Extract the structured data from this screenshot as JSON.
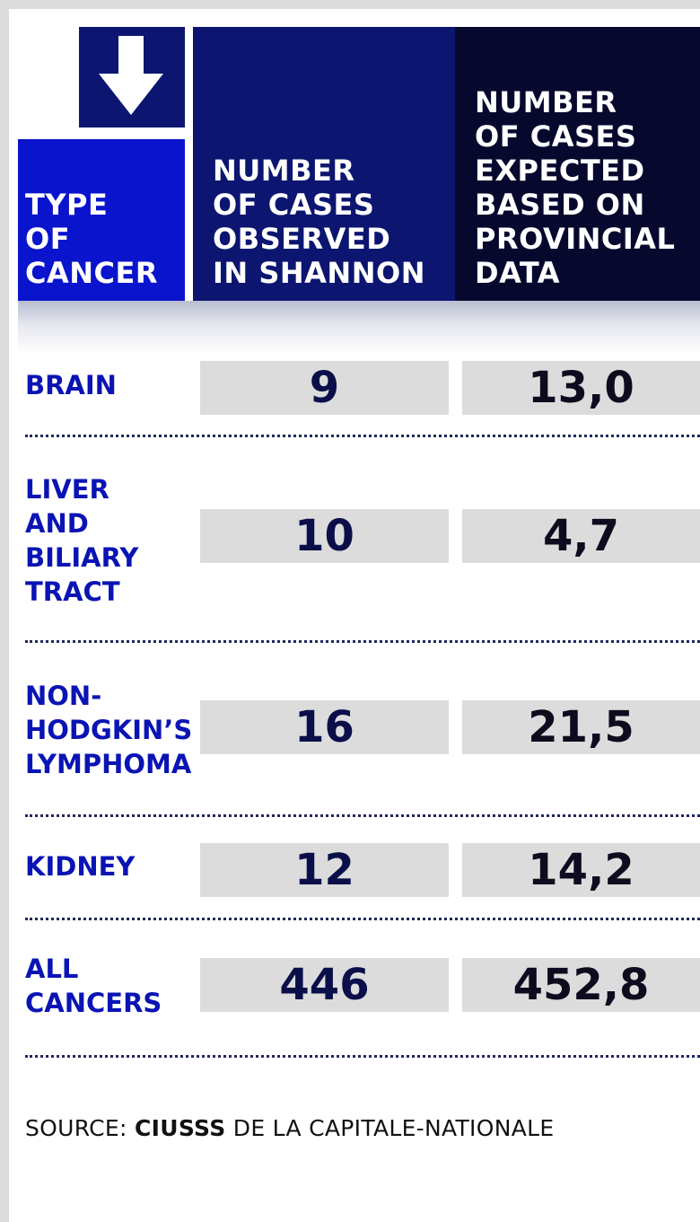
{
  "header": {
    "type_of_cancer": "TYPE\nOF\nCANCER",
    "observed": "NUMBER\nOF CASES\nOBSERVED\nIN SHANNON",
    "expected": "NUMBER\nOF CASES\nEXPECTED\nBASED ON\nPROVINCIAL\nDATA"
  },
  "rows": [
    {
      "label": "BRAIN",
      "observed": "9",
      "expected": "13,0"
    },
    {
      "label": "LIVER\nAND\nBILIARY\nTRACT",
      "observed": "10",
      "expected": "4,7"
    },
    {
      "label": "NON-\nHODGKIN’S\nLYMPHOMA",
      "observed": "16",
      "expected": "21,5"
    },
    {
      "label": "KIDNEY",
      "observed": "12",
      "expected": "14,2"
    },
    {
      "label": "ALL\nCANCERS",
      "observed": "446",
      "expected": "452,8"
    }
  ],
  "source": {
    "prefix": "SOURCE: ",
    "org": "CIUSSS",
    "suffix": " DE LA CAPITALE-NATIONALE"
  },
  "chart_data": {
    "type": "table",
    "columns": [
      "TYPE OF CANCER",
      "NUMBER OF CASES OBSERVED IN SHANNON",
      "NUMBER OF CASES EXPECTED BASED ON PROVINCIAL DATA"
    ],
    "rows": [
      [
        "BRAIN",
        9,
        13.0
      ],
      [
        "LIVER AND BILIARY TRACT",
        10,
        4.7
      ],
      [
        "NON-HODGKIN’S LYMPHOMA",
        16,
        21.5
      ],
      [
        "KIDNEY",
        12,
        14.2
      ],
      [
        "ALL CANCERS",
        446,
        452.8
      ]
    ]
  },
  "colors": {
    "header_type_bg": "#0a14cc",
    "header_observed_bg": "#0c1670",
    "header_expected_bg": "#06082e",
    "label_text": "#0a14b4",
    "cell_bg": "#dcdcdc"
  },
  "icons": {
    "header_arrow": "arrow-down-icon"
  }
}
